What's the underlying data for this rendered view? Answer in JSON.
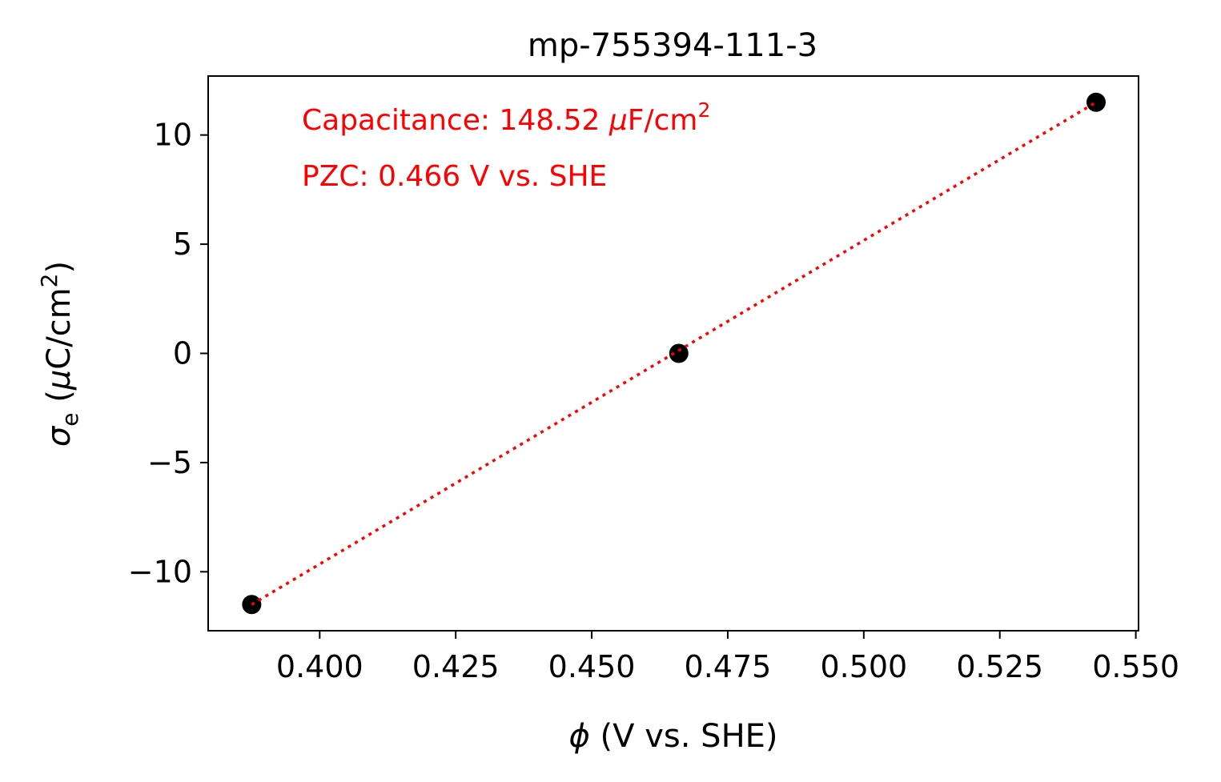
{
  "chart_data": {
    "type": "scatter",
    "title": "mp-755394-111-3",
    "xlabel": "ϕ (V vs. SHE)",
    "ylabel": "σe (μC/cm2)",
    "xlim": [
      0.3795,
      0.5505
    ],
    "ylim": [
      -12.7,
      12.7
    ],
    "xticks": [
      0.4,
      0.425,
      0.45,
      0.475,
      0.5,
      0.525,
      0.55
    ],
    "xtick_labels": [
      "0.400",
      "0.425",
      "0.450",
      "0.475",
      "0.500",
      "0.525",
      "0.550"
    ],
    "yticks": [
      -10,
      -5,
      0,
      5,
      10
    ],
    "ytick_labels": [
      "−10",
      "−5",
      "0",
      "5",
      "10"
    ],
    "grid": false,
    "series": [
      {
        "kind": "scatter",
        "color": "#000000",
        "x": [
          0.3875,
          0.466,
          0.5427
        ],
        "y": [
          -11.5,
          0.0,
          11.5
        ]
      },
      {
        "kind": "fit-line",
        "style": "dotted",
        "color": "#ff0000",
        "x": [
          0.3875,
          0.5427
        ],
        "y": [
          -11.5,
          11.5
        ]
      }
    ],
    "annotations": [
      {
        "text_main": "Capacitance: 148.52 ",
        "text_mu": "μ",
        "text_unit": "F/cm",
        "text_sup": "2",
        "color": "#ff0000"
      },
      {
        "text_main": "PZC: 0.466 V vs. SHE",
        "color": "#ff0000"
      }
    ]
  }
}
